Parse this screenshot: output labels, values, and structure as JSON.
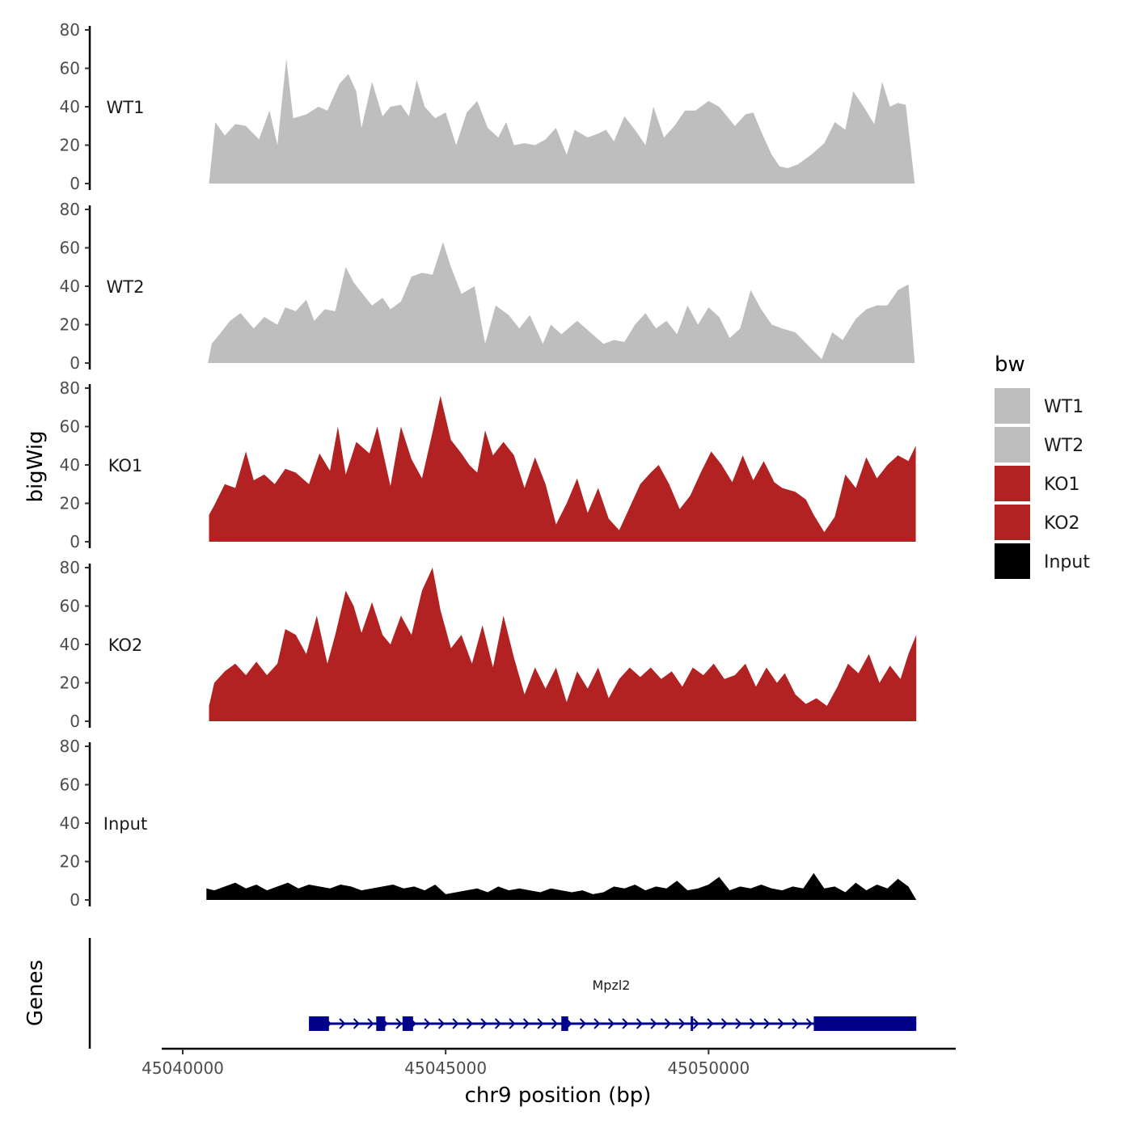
{
  "chart_data": {
    "type": "area",
    "title": "",
    "ylabel": "bigWig",
    "xlabel": "chr9 position (bp)",
    "genes_label": "Genes",
    "xlim": [
      45039600,
      45054700
    ],
    "ylim": [
      0,
      80
    ],
    "y_ticks": [
      "0",
      "20",
      "40",
      "60",
      "80"
    ],
    "x_ticks": [
      {
        "value": 45040000,
        "label": "45040000"
      },
      {
        "value": 45045000,
        "label": "45045000"
      },
      {
        "value": 45050000,
        "label": "45050000"
      }
    ],
    "legend": {
      "title": "bw",
      "position": "right",
      "entries": [
        {
          "label": "WT1",
          "color": "#bebebe"
        },
        {
          "label": "WT2",
          "color": "#bebebe"
        },
        {
          "label": "KO1",
          "color": "#b22222"
        },
        {
          "label": "KO2",
          "color": "#b22222"
        },
        {
          "label": "Input",
          "color": "#000000"
        }
      ]
    },
    "series": [
      {
        "name": "WT1",
        "color": "#bebebe",
        "x": [
          45040500,
          45040620,
          45040800,
          45041000,
          45041200,
          45041450,
          45041650,
          45041800,
          45041970,
          45042100,
          45042350,
          45042580,
          45042750,
          45042980,
          45043150,
          45043300,
          45043400,
          45043600,
          45043800,
          45043950,
          45044150,
          45044300,
          45044450,
          45044600,
          45044800,
          45045000,
          45045200,
          45045400,
          45045600,
          45045800,
          45046000,
          45046150,
          45046300,
          45046500,
          45046700,
          45046900,
          45047100,
          45047300,
          45047450,
          45047700,
          45047900,
          45048050,
          45048200,
          45048400,
          45048600,
          45048800,
          45048950,
          45049150,
          45049350,
          45049550,
          45049750,
          45050000,
          45050200,
          45050500,
          45050700,
          45050850,
          45051000,
          45051200,
          45051350,
          45051500,
          45051700,
          45051950,
          45052200,
          45052400,
          45052600,
          45052750,
          45052950,
          45053150,
          45053300,
          45053450,
          45053600,
          45053750,
          45053920
        ],
        "values": [
          0,
          32,
          25,
          31,
          30,
          23,
          38,
          20,
          65,
          34,
          36,
          40,
          38,
          52,
          57,
          48,
          29,
          53,
          35,
          40,
          41,
          35,
          54,
          40,
          34,
          37,
          20,
          37,
          43,
          29,
          24,
          32,
          20,
          21,
          20,
          23,
          29,
          15,
          28,
          24,
          26,
          28,
          22,
          35,
          28,
          20,
          40,
          24,
          30,
          38,
          38,
          43,
          40,
          30,
          36,
          37,
          27,
          15,
          9,
          8,
          10,
          15,
          21,
          32,
          28,
          48,
          40,
          31,
          53,
          40,
          42,
          41,
          0
        ]
      },
      {
        "name": "WT2",
        "color": "#bebebe",
        "x": [
          45040480,
          45040550,
          45040700,
          45040900,
          45041100,
          45041350,
          45041550,
          45041800,
          45041950,
          45042150,
          45042350,
          45042500,
          45042700,
          45042900,
          45043100,
          45043250,
          45043450,
          45043600,
          45043800,
          45043950,
          45044150,
          45044350,
          45044550,
          45044750,
          45044950,
          45045100,
          45045300,
          45045550,
          45045750,
          45045950,
          45046200,
          45046400,
          45046600,
          45046850,
          45047000,
          45047200,
          45047500,
          45047750,
          45048000,
          45048200,
          45048400,
          45048600,
          45048800,
          45049000,
          45049200,
          45049400,
          45049600,
          45049800,
          45050000,
          45050200,
          45050400,
          45050600,
          45050800,
          45051000,
          45051200,
          45051400,
          45051650,
          45051900,
          45052150,
          45052350,
          45052550,
          45052800,
          45053000,
          45053200,
          45053400,
          45053600,
          45053800,
          45053920
        ],
        "values": [
          0,
          10,
          15,
          22,
          26,
          18,
          24,
          20,
          29,
          27,
          33,
          22,
          28,
          27,
          50,
          42,
          35,
          30,
          34,
          28,
          32,
          45,
          47,
          46,
          63,
          50,
          36,
          40,
          10,
          30,
          25,
          18,
          25,
          10,
          20,
          15,
          22,
          16,
          10,
          12,
          11,
          20,
          26,
          18,
          22,
          15,
          30,
          20,
          29,
          24,
          13,
          18,
          38,
          28,
          20,
          18,
          16,
          9,
          2,
          16,
          12,
          23,
          28,
          30,
          30,
          38,
          41,
          0
        ]
      },
      {
        "name": "KO1",
        "color": "#b22222",
        "x": [
          45040500,
          45040600,
          45040800,
          45041000,
          45041200,
          45041350,
          45041550,
          45041750,
          45041950,
          45042150,
          45042400,
          45042600,
          45042800,
          45042950,
          45043100,
          45043300,
          45043550,
          45043700,
          45043950,
          45044150,
          45044350,
          45044550,
          45044750,
          45044900,
          45045100,
          45045300,
          45045450,
          45045600,
          45045750,
          45045900,
          45046100,
          45046300,
          45046500,
          45046700,
          45046900,
          45047100,
          45047300,
          45047500,
          45047700,
          45047900,
          45048100,
          45048300,
          45048500,
          45048700,
          45048900,
          45049050,
          45049250,
          45049450,
          45049650,
          45049850,
          45050050,
          45050250,
          45050450,
          45050650,
          45050850,
          45051050,
          45051250,
          45051400,
          45051650,
          45051850,
          45052000,
          45052200,
          45052400,
          45052600,
          45052800,
          45053000,
          45053200,
          45053400,
          45053600,
          45053800,
          45053940
        ],
        "values": [
          14,
          19,
          30,
          28,
          47,
          32,
          35,
          30,
          38,
          36,
          30,
          46,
          37,
          60,
          35,
          52,
          46,
          60,
          29,
          60,
          43,
          33,
          57,
          76,
          53,
          46,
          40,
          36,
          58,
          45,
          52,
          45,
          28,
          44,
          30,
          9,
          20,
          33,
          15,
          28,
          12,
          6,
          18,
          30,
          36,
          40,
          30,
          17,
          24,
          36,
          47,
          40,
          31,
          45,
          32,
          42,
          31,
          28,
          26,
          22,
          14,
          5,
          13,
          35,
          28,
          44,
          33,
          40,
          45,
          42,
          50
        ]
      },
      {
        "name": "KO2",
        "color": "#b22222",
        "x": [
          45040500,
          45040600,
          45040800,
          45041000,
          45041200,
          45041400,
          45041600,
          45041800,
          45041950,
          45042150,
          45042350,
          45042550,
          45042750,
          45042900,
          45043100,
          45043250,
          45043400,
          45043600,
          45043800,
          45043950,
          45044150,
          45044350,
          45044550,
          45044750,
          45044900,
          45045100,
          45045300,
          45045500,
          45045700,
          45045900,
          45046100,
          45046300,
          45046500,
          45046700,
          45046900,
          45047100,
          45047300,
          45047500,
          45047700,
          45047900,
          45048100,
          45048300,
          45048500,
          45048700,
          45048900,
          45049100,
          45049300,
          45049500,
          45049700,
          45049900,
          45050100,
          45050300,
          45050500,
          45050700,
          45050900,
          45051100,
          45051300,
          45051450,
          45051650,
          45051850,
          45052050,
          45052250,
          45052450,
          45052650,
          45052850,
          45053050,
          45053250,
          45053450,
          45053650,
          45053800,
          45053950
        ],
        "values": [
          8,
          20,
          26,
          30,
          24,
          31,
          24,
          30,
          48,
          45,
          35,
          55,
          30,
          45,
          68,
          60,
          46,
          62,
          45,
          40,
          55,
          45,
          68,
          80,
          58,
          38,
          45,
          30,
          50,
          28,
          55,
          33,
          14,
          28,
          17,
          28,
          10,
          26,
          17,
          28,
          12,
          22,
          28,
          23,
          28,
          22,
          26,
          18,
          28,
          24,
          30,
          22,
          24,
          30,
          18,
          28,
          20,
          25,
          14,
          9,
          12,
          8,
          18,
          30,
          25,
          35,
          20,
          29,
          22,
          35,
          45
        ]
      },
      {
        "name": "Input",
        "color": "#000000",
        "x": [
          45040450,
          45040600,
          45040800,
          45041000,
          45041200,
          45041400,
          45041600,
          45041800,
          45042000,
          45042200,
          45042400,
          45042600,
          45042800,
          45043000,
          45043200,
          45043400,
          45043600,
          45043800,
          45044000,
          45044200,
          45044400,
          45044600,
          45044800,
          45045000,
          45045200,
          45045400,
          45045600,
          45045800,
          45046000,
          45046200,
          45046400,
          45046600,
          45046800,
          45047000,
          45047200,
          45047400,
          45047600,
          45047800,
          45048000,
          45048200,
          45048400,
          45048600,
          45048800,
          45049000,
          45049200,
          45049400,
          45049600,
          45049800,
          45050000,
          45050200,
          45050400,
          45050600,
          45050800,
          45051000,
          45051200,
          45051400,
          45051600,
          45051800,
          45052000,
          45052200,
          45052400,
          45052600,
          45052800,
          45053000,
          45053200,
          45053400,
          45053600,
          45053800,
          45053950
        ],
        "values": [
          6,
          5,
          7,
          9,
          6,
          8,
          5,
          7,
          9,
          6,
          8,
          7,
          6,
          8,
          7,
          5,
          6,
          7,
          8,
          6,
          7,
          5,
          8,
          3,
          4,
          5,
          6,
          4,
          7,
          5,
          6,
          5,
          4,
          6,
          5,
          4,
          5,
          3,
          4,
          7,
          6,
          8,
          5,
          7,
          6,
          10,
          5,
          6,
          8,
          12,
          5,
          7,
          6,
          8,
          6,
          5,
          7,
          6,
          14,
          6,
          7,
          4,
          9,
          5,
          8,
          6,
          11,
          7,
          0
        ]
      }
    ],
    "gene_track": {
      "gene": "Mpzl2",
      "start": 45042400,
      "end": 45053950,
      "strand": "+",
      "color": "#00008b",
      "exons": [
        [
          45042400,
          45042780
        ],
        [
          45043680,
          45043850
        ],
        [
          45044180,
          45044380
        ],
        [
          45047200,
          45047330
        ],
        [
          45049660,
          45049700
        ],
        [
          45052000,
          45053950
        ]
      ]
    }
  }
}
